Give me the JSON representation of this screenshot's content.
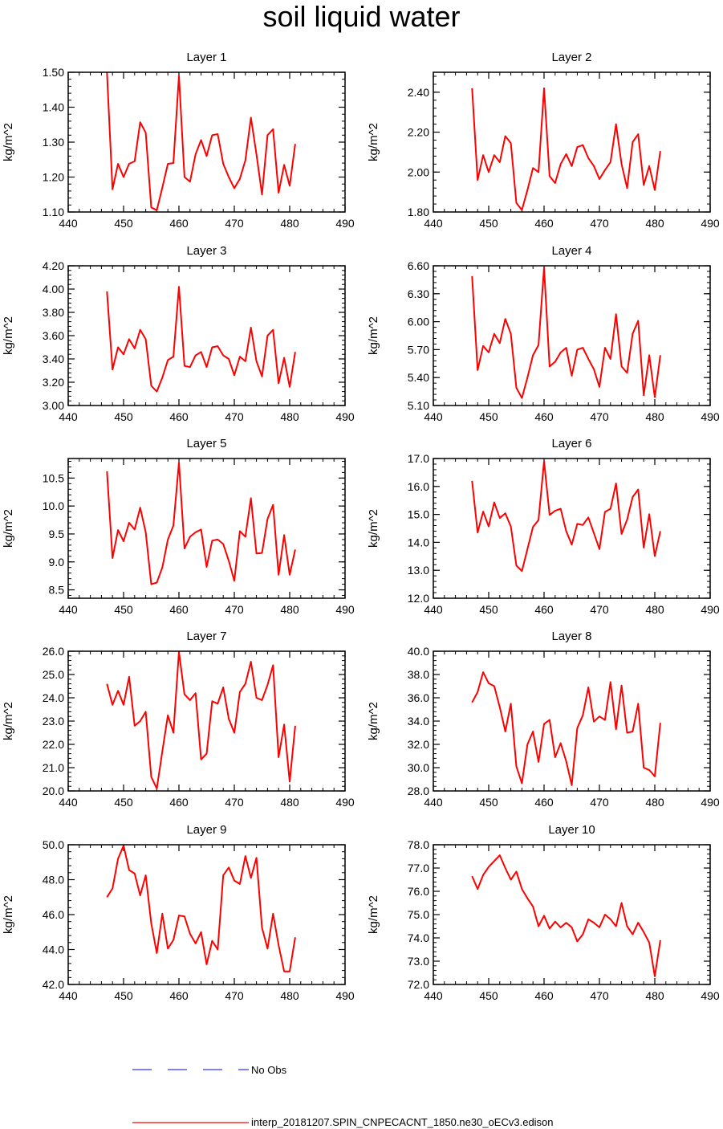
{
  "title": "soil liquid water",
  "legend": {
    "obs_label": "No Obs",
    "model_label": "interp_20181207.SPIN_CNPECACNT_1850.ne30_oECv3.edison",
    "obs_color": "#0000ff",
    "model_color": "#ff0000"
  },
  "chart_data": [
    {
      "type": "line",
      "title": "Layer 1",
      "ylabel": "kg/m^2",
      "xlim": [
        440,
        490
      ],
      "ylim": [
        1.1,
        1.5
      ],
      "xticks": [
        440,
        450,
        460,
        470,
        480,
        490
      ],
      "yticks": [
        1.1,
        1.2,
        1.3,
        1.4,
        1.5
      ],
      "ytick_decimals": 2,
      "series": [
        {
          "color": "#ff0000",
          "x": [
            447,
            448,
            449,
            450,
            451,
            452,
            453,
            454,
            455,
            456,
            457,
            458,
            459,
            460,
            461,
            462,
            463,
            464,
            465,
            466,
            467,
            468,
            469,
            470,
            471,
            472,
            473,
            474,
            475,
            476,
            477,
            478,
            479,
            480,
            481
          ],
          "values": [
            1.5,
            1.165,
            1.238,
            1.2,
            1.238,
            1.245,
            1.357,
            1.327,
            1.113,
            1.105,
            1.17,
            1.238,
            1.24,
            1.49,
            1.2,
            1.187,
            1.265,
            1.306,
            1.26,
            1.32,
            1.323,
            1.238,
            1.2,
            1.168,
            1.195,
            1.248,
            1.37,
            1.265,
            1.15,
            1.32,
            1.337,
            1.155,
            1.235,
            1.175,
            1.295
          ]
        }
      ]
    },
    {
      "type": "line",
      "title": "Layer 2",
      "ylabel": "kg/m^2",
      "xlim": [
        440,
        490
      ],
      "ylim": [
        1.8,
        2.5
      ],
      "xticks": [
        440,
        450,
        460,
        470,
        480,
        490
      ],
      "yticks": [
        1.8,
        2.0,
        2.2,
        2.4
      ],
      "ytick_decimals": 2,
      "series": [
        {
          "color": "#ff0000",
          "x": [
            447,
            448,
            449,
            450,
            451,
            452,
            453,
            454,
            455,
            456,
            457,
            458,
            459,
            460,
            461,
            462,
            463,
            464,
            465,
            466,
            467,
            468,
            469,
            470,
            471,
            472,
            473,
            474,
            475,
            476,
            477,
            478,
            479,
            480,
            481
          ],
          "values": [
            2.42,
            1.96,
            2.085,
            2.0,
            2.085,
            2.05,
            2.18,
            2.145,
            1.845,
            1.81,
            1.91,
            2.02,
            2.0,
            2.42,
            1.98,
            1.945,
            2.04,
            2.09,
            2.03,
            2.125,
            2.135,
            2.07,
            2.03,
            1.965,
            2.01,
            2.05,
            2.24,
            2.04,
            1.92,
            2.15,
            2.19,
            1.935,
            2.03,
            1.91,
            2.105
          ]
        }
      ]
    },
    {
      "type": "line",
      "title": "Layer 3",
      "ylabel": "kg/m^2",
      "xlim": [
        440,
        490
      ],
      "ylim": [
        3.0,
        4.2
      ],
      "xticks": [
        440,
        450,
        460,
        470,
        480,
        490
      ],
      "yticks": [
        3.0,
        3.2,
        3.4,
        3.6,
        3.8,
        4.0,
        4.2
      ],
      "ytick_decimals": 2,
      "series": [
        {
          "color": "#ff0000",
          "x": [
            447,
            448,
            449,
            450,
            451,
            452,
            453,
            454,
            455,
            456,
            457,
            458,
            459,
            460,
            461,
            462,
            463,
            464,
            465,
            466,
            467,
            468,
            469,
            470,
            471,
            472,
            473,
            474,
            475,
            476,
            477,
            478,
            479,
            480,
            481
          ],
          "values": [
            3.98,
            3.31,
            3.5,
            3.44,
            3.57,
            3.49,
            3.65,
            3.57,
            3.17,
            3.12,
            3.24,
            3.39,
            3.42,
            4.02,
            3.34,
            3.33,
            3.43,
            3.46,
            3.33,
            3.5,
            3.51,
            3.43,
            3.4,
            3.26,
            3.42,
            3.38,
            3.67,
            3.38,
            3.25,
            3.6,
            3.65,
            3.19,
            3.41,
            3.16,
            3.46
          ]
        }
      ]
    },
    {
      "type": "line",
      "title": "Layer 4",
      "ylabel": "kg/m^2",
      "xlim": [
        440,
        490
      ],
      "ylim": [
        5.1,
        6.6
      ],
      "xticks": [
        440,
        450,
        460,
        470,
        480,
        490
      ],
      "yticks": [
        5.1,
        5.4,
        5.7,
        6.0,
        6.3,
        6.6
      ],
      "ytick_decimals": 2,
      "series": [
        {
          "color": "#ff0000",
          "x": [
            447,
            448,
            449,
            450,
            451,
            452,
            453,
            454,
            455,
            456,
            457,
            458,
            459,
            460,
            461,
            462,
            463,
            464,
            465,
            466,
            467,
            468,
            469,
            470,
            471,
            472,
            473,
            474,
            475,
            476,
            477,
            478,
            479,
            480,
            481
          ],
          "values": [
            6.49,
            5.48,
            5.74,
            5.67,
            5.87,
            5.77,
            6.03,
            5.87,
            5.29,
            5.18,
            5.4,
            5.64,
            5.75,
            6.58,
            5.52,
            5.57,
            5.67,
            5.72,
            5.42,
            5.7,
            5.72,
            5.6,
            5.49,
            5.3,
            5.72,
            5.6,
            6.08,
            5.52,
            5.45,
            5.87,
            6.01,
            5.21,
            5.64,
            5.19,
            5.64
          ]
        }
      ]
    },
    {
      "type": "line",
      "title": "Layer 5",
      "ylabel": "kg/m^2",
      "xlim": [
        440,
        490
      ],
      "ylim": [
        8.35,
        10.85
      ],
      "xticks": [
        440,
        450,
        460,
        470,
        480,
        490
      ],
      "yticks": [
        8.5,
        9.0,
        9.5,
        10.0,
        10.5
      ],
      "ytick_decimals": 1,
      "series": [
        {
          "color": "#ff0000",
          "x": [
            447,
            448,
            449,
            450,
            451,
            452,
            453,
            454,
            455,
            456,
            457,
            458,
            459,
            460,
            461,
            462,
            463,
            464,
            465,
            466,
            467,
            468,
            469,
            470,
            471,
            472,
            473,
            474,
            475,
            476,
            477,
            478,
            479,
            480,
            481
          ],
          "values": [
            10.62,
            9.07,
            9.57,
            9.37,
            9.7,
            9.58,
            9.97,
            9.53,
            8.6,
            8.63,
            8.9,
            9.4,
            9.65,
            10.78,
            9.24,
            9.45,
            9.53,
            9.58,
            8.91,
            9.38,
            9.4,
            9.32,
            9.02,
            8.66,
            9.55,
            9.45,
            10.14,
            9.15,
            9.16,
            9.77,
            10.02,
            8.77,
            9.48,
            8.77,
            9.22
          ]
        }
      ]
    },
    {
      "type": "line",
      "title": "Layer 6",
      "ylabel": "kg/m^2",
      "xlim": [
        440,
        490
      ],
      "ylim": [
        12.0,
        17.0
      ],
      "xticks": [
        440,
        450,
        460,
        470,
        480,
        490
      ],
      "yticks": [
        12.0,
        13.0,
        14.0,
        15.0,
        16.0,
        17.0
      ],
      "ytick_decimals": 1,
      "series": [
        {
          "color": "#ff0000",
          "x": [
            447,
            448,
            449,
            450,
            451,
            452,
            453,
            454,
            455,
            456,
            457,
            458,
            459,
            460,
            461,
            462,
            463,
            464,
            465,
            466,
            467,
            468,
            469,
            470,
            471,
            472,
            473,
            474,
            475,
            476,
            477,
            478,
            479,
            480,
            481
          ],
          "values": [
            16.2,
            14.35,
            15.1,
            14.57,
            15.43,
            14.87,
            15.04,
            14.57,
            13.17,
            12.97,
            13.76,
            14.55,
            14.8,
            16.9,
            14.98,
            15.13,
            15.2,
            14.4,
            13.92,
            14.66,
            14.62,
            14.89,
            14.33,
            13.76,
            15.09,
            15.2,
            16.11,
            14.3,
            14.81,
            15.62,
            15.89,
            13.81,
            15.01,
            13.51,
            14.4
          ]
        }
      ]
    },
    {
      "type": "line",
      "title": "Layer 7",
      "ylabel": "kg/m^2",
      "xlim": [
        440,
        490
      ],
      "ylim": [
        20.0,
        26.0
      ],
      "xticks": [
        440,
        450,
        460,
        470,
        480,
        490
      ],
      "yticks": [
        20.0,
        21.0,
        22.0,
        23.0,
        24.0,
        25.0,
        26.0
      ],
      "ytick_decimals": 1,
      "series": [
        {
          "color": "#ff0000",
          "x": [
            447,
            448,
            449,
            450,
            451,
            452,
            453,
            454,
            455,
            456,
            457,
            458,
            459,
            460,
            461,
            462,
            463,
            464,
            465,
            466,
            467,
            468,
            469,
            470,
            471,
            472,
            473,
            474,
            475,
            476,
            477,
            478,
            479,
            480,
            481
          ],
          "values": [
            24.6,
            23.7,
            24.3,
            23.7,
            24.9,
            22.8,
            23.0,
            23.4,
            20.6,
            20.1,
            21.7,
            23.25,
            22.5,
            25.98,
            24.15,
            23.9,
            24.2,
            21.35,
            21.6,
            23.85,
            23.75,
            24.45,
            23.1,
            22.5,
            24.25,
            24.6,
            25.55,
            24.0,
            23.9,
            24.55,
            25.4,
            21.45,
            22.85,
            20.4,
            22.8
          ]
        }
      ]
    },
    {
      "type": "line",
      "title": "Layer 8",
      "ylabel": "kg/m^2",
      "xlim": [
        440,
        490
      ],
      "ylim": [
        28.0,
        40.0
      ],
      "xticks": [
        440,
        450,
        460,
        470,
        480,
        490
      ],
      "yticks": [
        28.0,
        30.0,
        32.0,
        34.0,
        36.0,
        38.0,
        40.0
      ],
      "ytick_decimals": 1,
      "series": [
        {
          "color": "#ff0000",
          "x": [
            447,
            448,
            449,
            450,
            451,
            452,
            453,
            454,
            455,
            456,
            457,
            458,
            459,
            460,
            461,
            462,
            463,
            464,
            465,
            466,
            467,
            468,
            469,
            470,
            471,
            472,
            473,
            474,
            475,
            476,
            477,
            478,
            479,
            480,
            481
          ],
          "values": [
            35.6,
            36.5,
            38.2,
            37.25,
            37.0,
            35.2,
            33.1,
            35.5,
            30.1,
            28.65,
            32.0,
            33.1,
            30.5,
            33.75,
            34.1,
            30.9,
            32.1,
            30.55,
            28.5,
            33.4,
            34.5,
            36.9,
            33.95,
            34.4,
            34.1,
            37.35,
            33.3,
            37.05,
            33.0,
            33.1,
            35.5,
            30.0,
            29.8,
            29.25,
            33.85
          ]
        }
      ]
    },
    {
      "type": "line",
      "title": "Layer 9",
      "ylabel": "kg/m^2",
      "xlim": [
        440,
        490
      ],
      "ylim": [
        42.0,
        50.0
      ],
      "xticks": [
        440,
        450,
        460,
        470,
        480,
        490
      ],
      "yticks": [
        42.0,
        44.0,
        46.0,
        48.0,
        50.0
      ],
      "ytick_decimals": 1,
      "series": [
        {
          "color": "#ff0000",
          "x": [
            447,
            448,
            449,
            450,
            451,
            452,
            453,
            454,
            455,
            456,
            457,
            458,
            459,
            460,
            461,
            462,
            463,
            464,
            465,
            466,
            467,
            468,
            469,
            470,
            471,
            472,
            473,
            474,
            475,
            476,
            477,
            478,
            479,
            480,
            481
          ],
          "values": [
            47.0,
            47.5,
            49.2,
            49.95,
            48.55,
            48.35,
            47.1,
            48.25,
            45.5,
            43.8,
            46.05,
            44.05,
            44.55,
            45.95,
            45.9,
            44.9,
            44.35,
            45.0,
            43.15,
            44.5,
            44.0,
            48.25,
            48.7,
            47.95,
            47.75,
            49.35,
            48.1,
            49.25,
            45.25,
            44.05,
            46.05,
            44.25,
            42.75,
            42.75,
            44.7
          ]
        }
      ]
    },
    {
      "type": "line",
      "title": "Layer 10",
      "ylabel": "kg/m^2",
      "xlim": [
        440,
        490
      ],
      "ylim": [
        72.0,
        78.0
      ],
      "xticks": [
        440,
        450,
        460,
        470,
        480,
        490
      ],
      "yticks": [
        72.0,
        73.0,
        74.0,
        75.0,
        76.0,
        77.0,
        78.0
      ],
      "ytick_decimals": 1,
      "series": [
        {
          "color": "#ff0000",
          "x": [
            447,
            448,
            449,
            450,
            451,
            452,
            453,
            454,
            455,
            456,
            457,
            458,
            459,
            460,
            461,
            462,
            463,
            464,
            465,
            466,
            467,
            468,
            469,
            470,
            471,
            472,
            473,
            474,
            475,
            476,
            477,
            478,
            479,
            480,
            481
          ],
          "values": [
            76.65,
            76.1,
            76.7,
            77.05,
            77.3,
            77.55,
            77.0,
            76.5,
            76.85,
            76.1,
            75.7,
            75.35,
            74.5,
            74.95,
            74.4,
            74.7,
            74.45,
            74.65,
            74.45,
            73.85,
            74.15,
            74.8,
            74.65,
            74.45,
            75.0,
            74.8,
            74.5,
            75.5,
            74.5,
            74.15,
            74.65,
            74.25,
            73.8,
            72.35,
            73.9
          ]
        }
      ]
    }
  ]
}
